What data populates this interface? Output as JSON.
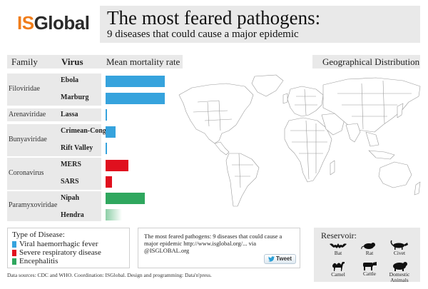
{
  "logo": {
    "part1": "IS",
    "part2": "Global"
  },
  "header": {
    "title": "The most feared pathogens:",
    "subtitle": "9 diseases that could cause a major epidemic"
  },
  "columns": {
    "family": "Family",
    "virus": "Virus",
    "mortality": "Mean mortality rate",
    "geo": "Geographical Distribution"
  },
  "families": [
    {
      "name": "Filoviridae"
    },
    {
      "name": "Arenaviridae"
    },
    {
      "name": "Bunyaviridae"
    },
    {
      "name": "Coronavirus"
    },
    {
      "name": "Paramyxoviridae"
    }
  ],
  "chart_data": {
    "type": "bar",
    "categories": [
      "Ebola",
      "Marburg",
      "Lassa",
      "Crimean-Congo",
      "Rift Valley",
      "MERS",
      "SARS",
      "Nipah",
      "Hendra"
    ],
    "values": [
      0.9,
      0.9,
      0.01,
      0.15,
      0.01,
      0.35,
      0.1,
      0.6,
      0.25
    ],
    "types": [
      "viral",
      "viral",
      "viral",
      "viral",
      "viral",
      "resp",
      "resp",
      "ence",
      "ence"
    ],
    "colors": {
      "viral": "#36a3dd",
      "resp": "#e0101e",
      "ence": "#2fa75e"
    },
    "title": "",
    "xlabel": "Mean mortality rate",
    "ylabel": "",
    "ylim": [
      0,
      1
    ]
  },
  "legend": {
    "title": "Type of Disease:",
    "items": [
      {
        "label": "Viral haemorrhagic fever",
        "color": "#36a3dd"
      },
      {
        "label": "Severe respiratory disease",
        "color": "#e0101e"
      },
      {
        "label": "Encephalitis",
        "color": "#2fa75e"
      }
    ]
  },
  "tweet": {
    "text": "The most feared pathogens: 9 diseases that could cause a major epidemic http://www.isglobal.org/... via @ISGLOBAL.org",
    "button": "Tweet"
  },
  "reservoir": {
    "title": "Reservoir:",
    "animals": [
      {
        "label": "Bat",
        "icon": "bat-icon"
      },
      {
        "label": "Rat",
        "icon": "rat-icon"
      },
      {
        "label": "Civet",
        "icon": "civet-icon"
      },
      {
        "label": "Camel",
        "icon": "camel-icon"
      },
      {
        "label": "Cattle",
        "icon": "cattle-icon"
      },
      {
        "label": "Domestic Animals",
        "icon": "domestic-animals-icon"
      }
    ]
  },
  "footer": "Data sources: CDC and WHO. Coordination: ISGlobal. Design and programming: Data'n'press."
}
